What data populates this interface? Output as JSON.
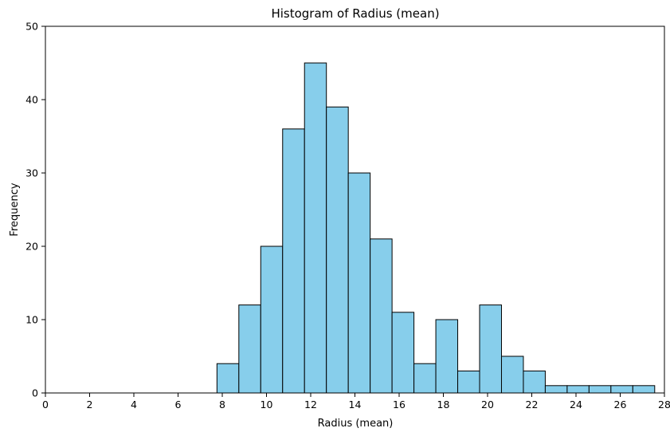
{
  "chart_data": {
    "type": "bar",
    "title": "Histogram of Radius (mean)",
    "xlabel": "Radius (mean)",
    "ylabel": "Frequency",
    "xlim": [
      0,
      28
    ],
    "ylim": [
      0,
      50
    ],
    "xticks": [
      "0",
      "2",
      "4",
      "6",
      "8",
      "10",
      "12",
      "14",
      "16",
      "18",
      "20",
      "22",
      "24",
      "26",
      "28"
    ],
    "yticks": [
      "0",
      "10",
      "20",
      "30",
      "40",
      "50"
    ],
    "grid": false,
    "bar_color": "#87ceeb",
    "edge_color": "#000000",
    "bins": [
      {
        "start": 7.76,
        "end": 8.75,
        "count": 4
      },
      {
        "start": 8.75,
        "end": 9.74,
        "count": 12
      },
      {
        "start": 9.74,
        "end": 10.73,
        "count": 20
      },
      {
        "start": 10.73,
        "end": 11.72,
        "count": 36
      },
      {
        "start": 11.72,
        "end": 12.71,
        "count": 45
      },
      {
        "start": 12.71,
        "end": 13.7,
        "count": 39
      },
      {
        "start": 13.7,
        "end": 14.69,
        "count": 30
      },
      {
        "start": 14.69,
        "end": 15.68,
        "count": 21
      },
      {
        "start": 15.68,
        "end": 16.67,
        "count": 11
      },
      {
        "start": 16.67,
        "end": 17.66,
        "count": 4
      },
      {
        "start": 17.66,
        "end": 18.65,
        "count": 10
      },
      {
        "start": 18.65,
        "end": 19.64,
        "count": 3
      },
      {
        "start": 19.64,
        "end": 20.63,
        "count": 12
      },
      {
        "start": 20.63,
        "end": 21.62,
        "count": 5
      },
      {
        "start": 21.62,
        "end": 22.61,
        "count": 3
      },
      {
        "start": 22.61,
        "end": 23.6,
        "count": 1
      },
      {
        "start": 23.6,
        "end": 24.59,
        "count": 1
      },
      {
        "start": 24.59,
        "end": 25.58,
        "count": 1
      },
      {
        "start": 25.58,
        "end": 26.57,
        "count": 1
      },
      {
        "start": 26.57,
        "end": 27.56,
        "count": 1
      }
    ]
  }
}
